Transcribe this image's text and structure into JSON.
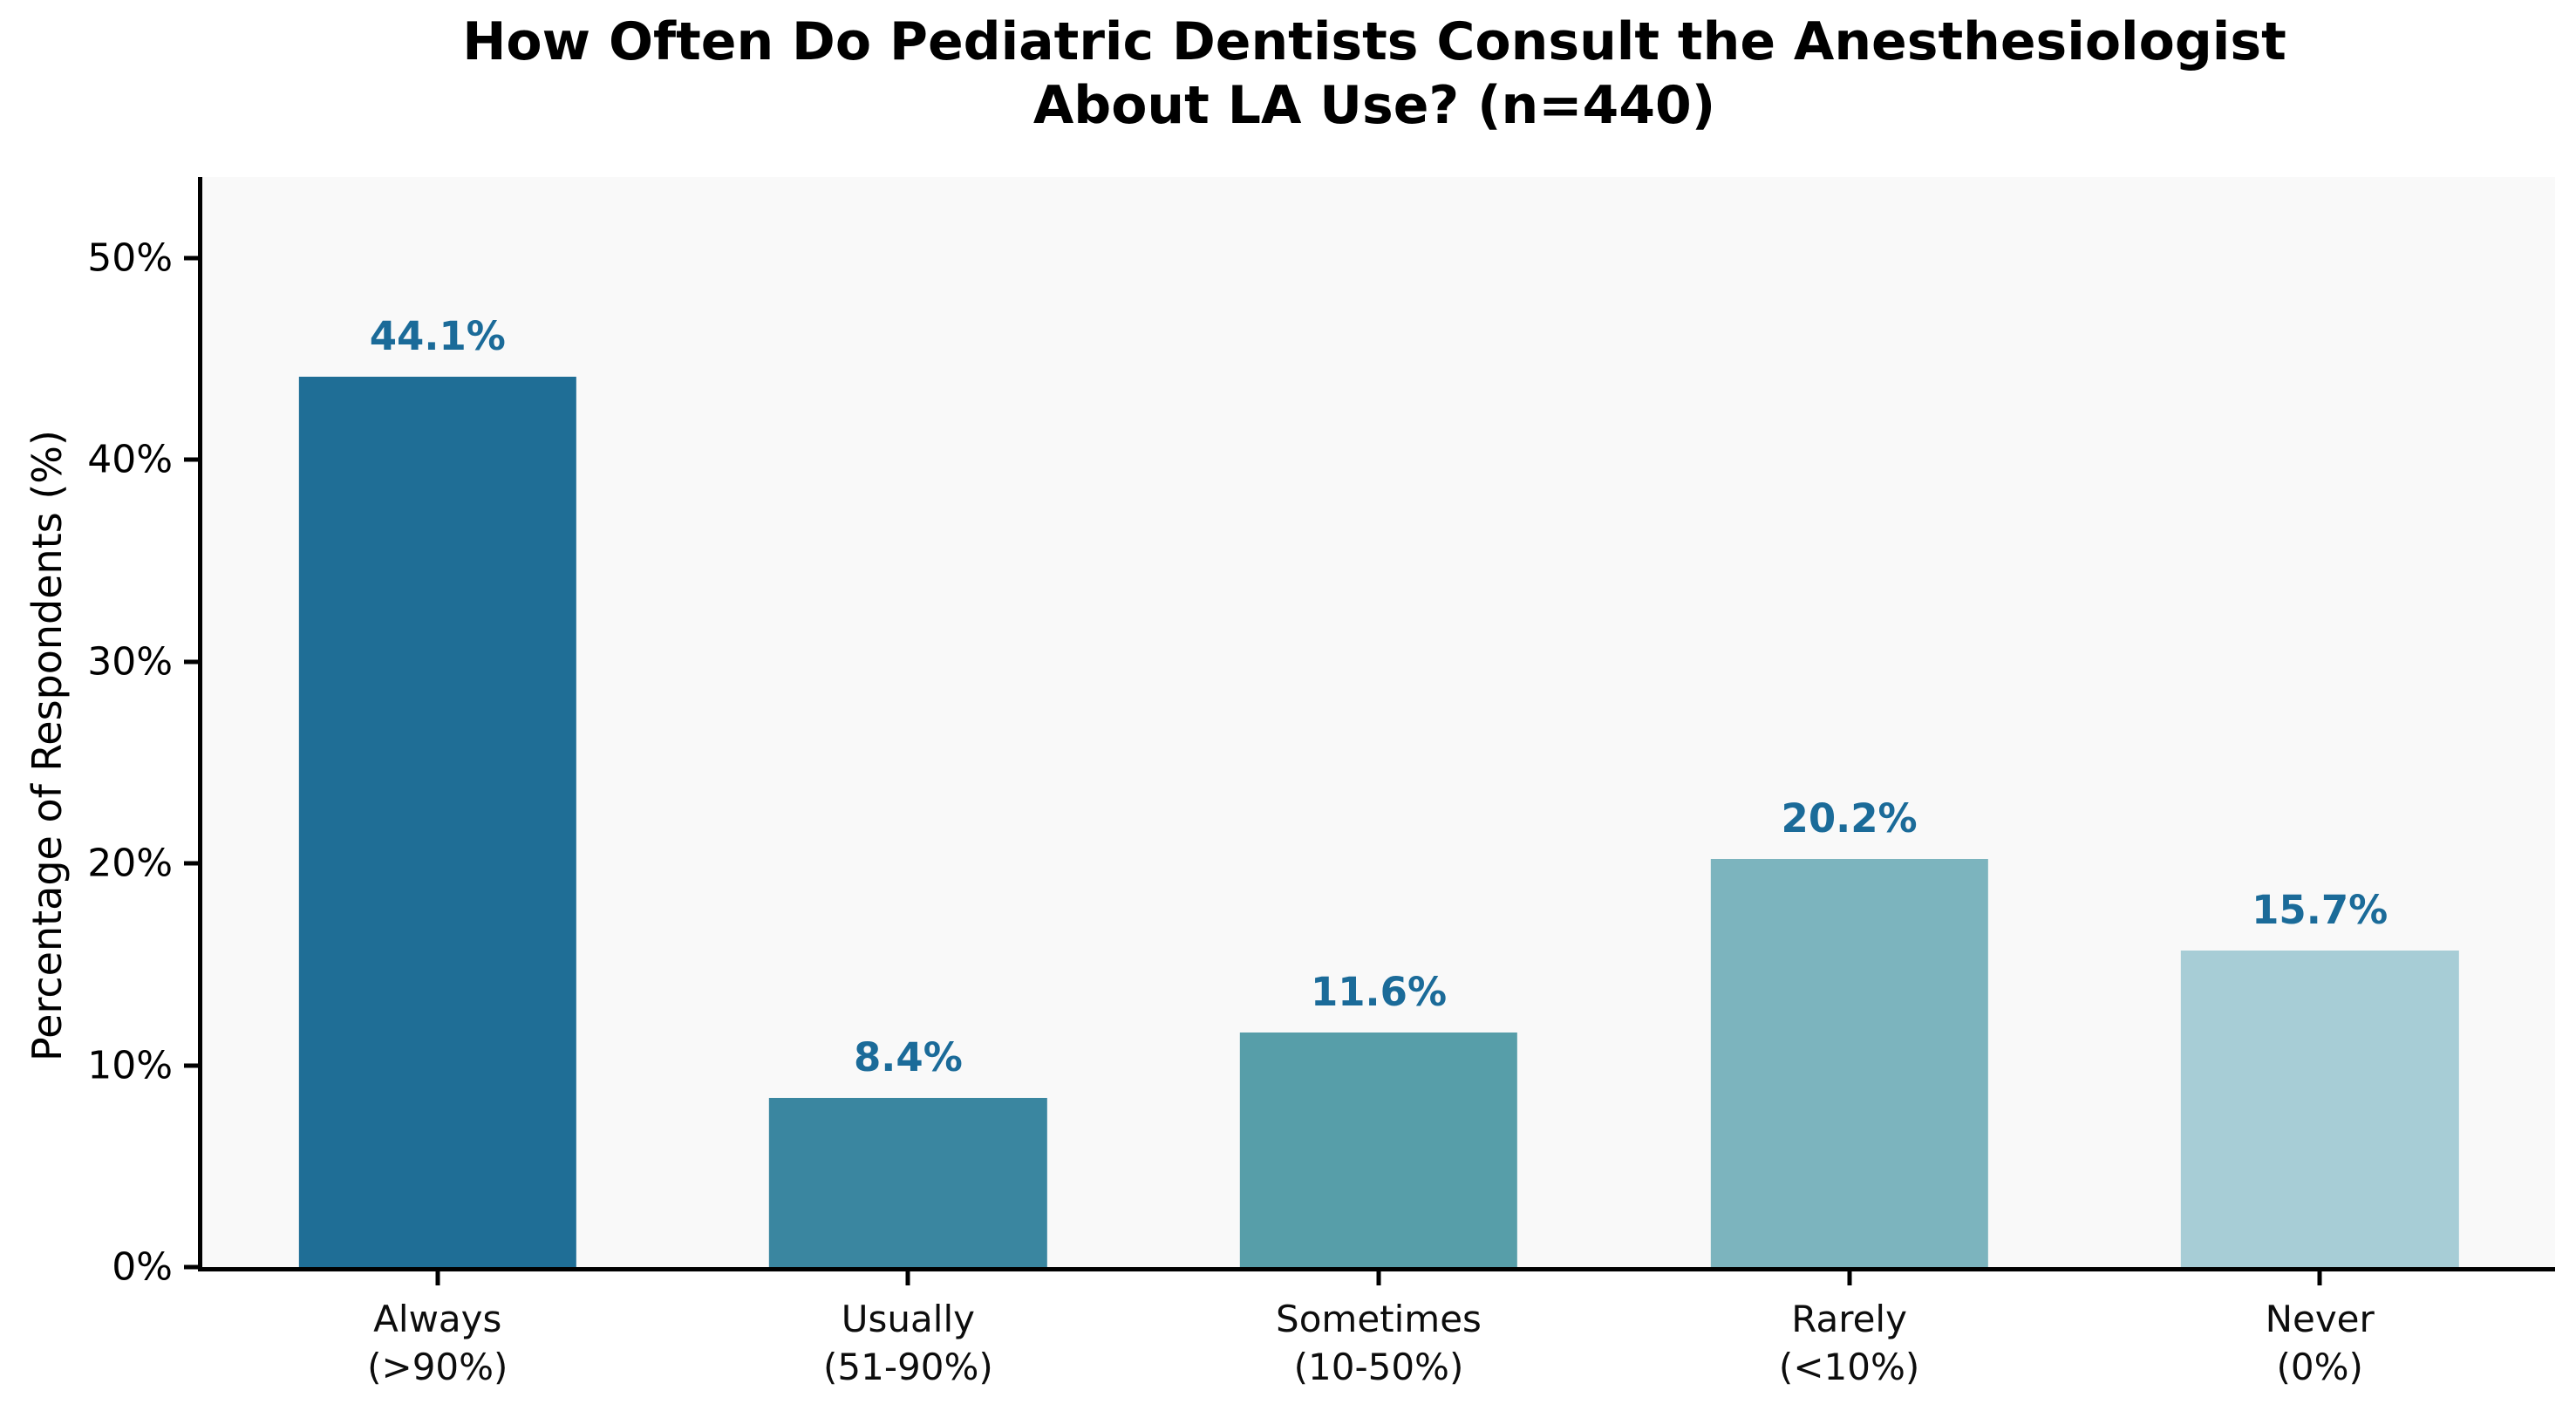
{
  "chart_data": {
    "type": "bar",
    "title": "How Often Do Pediatric Dentists Consult the Anesthesiologist\nAbout LA Use? (n=440)",
    "xlabel": "",
    "ylabel": "Percentage of Respondents (%)",
    "categories": [
      "Always\n(>90%)",
      "Usually\n(51-90%)",
      "Sometimes\n(10-50%)",
      "Rarely\n(<10%)",
      "Never\n(0%)"
    ],
    "values": [
      44.1,
      8.4,
      11.6,
      20.2,
      15.7
    ],
    "value_labels": [
      "44.1%",
      "8.4%",
      "11.6%",
      "20.2%",
      "15.7%"
    ],
    "n_total": "n=440",
    "ylim": [
      0,
      54
    ],
    "yticks": [
      0,
      10,
      20,
      30,
      40,
      50
    ],
    "ytick_labels": [
      "0%",
      "10%",
      "20%",
      "30%",
      "40%",
      "50%"
    ],
    "grid": false,
    "legend": null,
    "bar_width_fraction": 0.59,
    "colors": {
      "bars": [
        "#1F6E96",
        "#3A86A0",
        "#579EA9",
        "#7CB4BE",
        "#A7CDD6"
      ],
      "value_label": "#1B6B99",
      "plot_background": "#F9F9F9",
      "figure_background": "#FFFFFF",
      "axis": "#000000",
      "title_text": "#000000"
    }
  }
}
